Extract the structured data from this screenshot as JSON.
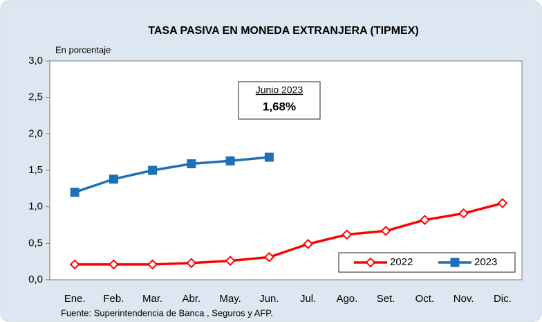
{
  "chart_data": {
    "type": "line",
    "title": "TASA PASIVA EN MONEDA EXTRANJERA (TIPMEX)",
    "y_label": "En porcentaje",
    "source": "Fuente: Superintendencia de Banca , Seguros y AFP.",
    "annotation": {
      "title": "Junio 2023",
      "label": "1,68%"
    },
    "categories": [
      "Ene.",
      "Feb.",
      "Mar.",
      "Abr.",
      "May.",
      "Jun.",
      "Jul.",
      "Ago.",
      "Set.",
      "Oct.",
      "Nov.",
      "Dic."
    ],
    "series": [
      {
        "name": "2022",
        "color": "#ff0000",
        "marker": "diamond",
        "values": [
          0.21,
          0.21,
          0.21,
          0.23,
          0.26,
          0.31,
          0.49,
          0.62,
          0.67,
          0.82,
          0.91,
          1.05
        ]
      },
      {
        "name": "2023",
        "color": "#1f6fb5",
        "marker": "square",
        "values": [
          1.2,
          1.38,
          1.5,
          1.59,
          1.63,
          1.68,
          null,
          null,
          null,
          null,
          null,
          null
        ]
      }
    ],
    "ylim": [
      0,
      3
    ],
    "yticks": [
      {
        "value": 0,
        "label": "0,0"
      },
      {
        "value": 0.5,
        "label": "0,5"
      },
      {
        "value": 1,
        "label": "1,0"
      },
      {
        "value": 1.5,
        "label": "1,5"
      },
      {
        "value": 2,
        "label": "2,0"
      },
      {
        "value": 2.5,
        "label": "2,5"
      },
      {
        "value": 3,
        "label": "3,0"
      }
    ],
    "legend": "lower right"
  }
}
